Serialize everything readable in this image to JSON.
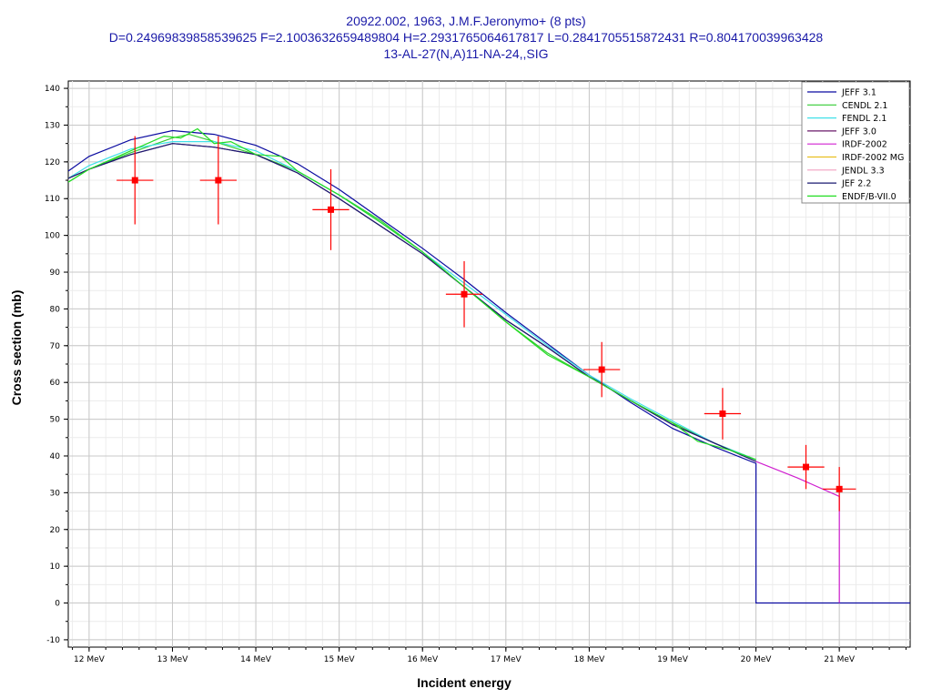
{
  "chart_data": {
    "type": "line",
    "title": "20922.002, 1963, J.M.F.Jeronymo+ (8 pts)",
    "subtitle": "D=0.24969839858539625 F=2.1003632659489804 H=2.2931765064617817 L=0.2841705515872431 R=0.804170039963428",
    "subtitle2": "13-AL-27(N,A)11-NA-24,,SIG",
    "xlabel": "Incident energy",
    "ylabel": "Cross section (mb)",
    "xlim": [
      11.75,
      21.85
    ],
    "ylim": [
      -12,
      142
    ],
    "x_ticks": [
      12,
      13,
      14,
      15,
      16,
      17,
      18,
      19,
      20,
      21
    ],
    "x_tick_labels": [
      "12 MeV",
      "13 MeV",
      "14 MeV",
      "15 MeV",
      "16 MeV",
      "17 MeV",
      "18 MeV",
      "19 MeV",
      "20 MeV",
      "21 MeV"
    ],
    "y_ticks": [
      -10,
      0,
      10,
      20,
      30,
      40,
      50,
      60,
      70,
      80,
      90,
      100,
      110,
      120,
      130,
      140
    ],
    "grid": true,
    "legend_position": "top-right",
    "series": [
      {
        "name": "JEFF 3.1",
        "color": "#0a0aa0",
        "x": [
          11.75,
          12,
          12.5,
          13,
          13.5,
          14,
          14.5,
          15,
          15.5,
          16,
          16.5,
          17,
          17.5,
          18,
          18.5,
          19,
          19.5,
          20,
          20,
          21.85
        ],
        "y": [
          117.5,
          121.5,
          126,
          128.5,
          127.5,
          124.5,
          119.5,
          112.5,
          104.5,
          96.5,
          88,
          79,
          70.5,
          62,
          54.5,
          47.5,
          42.5,
          38,
          0,
          0
        ]
      },
      {
        "name": "CENDL 2.1",
        "color": "#33cc33",
        "x": [
          11.75,
          12,
          12.5,
          13,
          13.2,
          13.5,
          14,
          14.5,
          15,
          15.5,
          16,
          16.5,
          17,
          17.5,
          18,
          18.5,
          19,
          19.5,
          20
        ],
        "y": [
          114.5,
          118,
          122.5,
          126.5,
          127.5,
          125.5,
          122,
          117.5,
          111,
          104,
          95.5,
          86,
          76.5,
          68,
          61.5,
          55,
          49,
          43.5,
          39
        ]
      },
      {
        "name": "FENDL 2.1",
        "color": "#40e0e8",
        "x": [
          11.75,
          12,
          12.5,
          13,
          13.5,
          14,
          14.5,
          15,
          15.5,
          16,
          16.5,
          17,
          17.5,
          18,
          18.5,
          19,
          19.5,
          20
        ],
        "y": [
          115.5,
          119,
          123.5,
          125.5,
          125.5,
          123,
          117.5,
          111,
          103.5,
          95.5,
          87,
          78.5,
          70,
          62,
          55.5,
          49.5,
          43.5,
          39
        ]
      },
      {
        "name": "JEFF 3.0",
        "color": "#6a1a6a",
        "x": [
          11.75,
          12,
          12.5,
          13,
          13.5,
          14,
          14.5,
          15,
          15.5,
          16,
          16.5,
          17,
          17.5,
          18,
          18.5,
          19,
          19.5,
          20
        ],
        "y": [
          115.5,
          118,
          122,
          125,
          124,
          122,
          117,
          110,
          102.5,
          95,
          86,
          77,
          69.5,
          61.5,
          55,
          48.5,
          43.5,
          38.5
        ]
      },
      {
        "name": "IRDF-2002",
        "color": "#d020d0",
        "x": [
          20,
          20.5,
          21,
          21
        ],
        "y": [
          38.5,
          34,
          29,
          0
        ]
      },
      {
        "name": "IRDF-2002 MG",
        "color": "#e8c020",
        "x": [],
        "y": []
      },
      {
        "name": "JENDL 3.3",
        "color": "#f0a0c0",
        "x": [],
        "y": []
      },
      {
        "name": "JEF 2.2",
        "color": "#1a1a70",
        "x": [
          11.75,
          12,
          12.5,
          13,
          13.5,
          14,
          14.5,
          15,
          15.5,
          16,
          16.5,
          17,
          17.5,
          18,
          18.5,
          19,
          19.5,
          20
        ],
        "y": [
          115.5,
          118,
          122,
          125,
          124,
          122,
          117,
          110,
          102.5,
          95,
          86,
          77,
          69.5,
          61.5,
          55,
          48.5,
          43.5,
          38.5
        ]
      },
      {
        "name": "ENDF/B-VII.0",
        "color": "#22dd22",
        "x": [
          11.75,
          12,
          12.5,
          12.9,
          13.1,
          13.3,
          13.5,
          13.7,
          14,
          14.3,
          14.5,
          15,
          15.5,
          16,
          16.5,
          17,
          17.5,
          18,
          18.5,
          19,
          19.3,
          19.7,
          20
        ],
        "y": [
          114.5,
          118,
          123,
          127,
          126.5,
          129,
          125,
          125.5,
          122,
          121.5,
          117.5,
          111,
          103.5,
          95.5,
          86,
          76.5,
          67.5,
          61.5,
          55,
          49,
          44,
          41.5,
          39
        ]
      }
    ],
    "experimental": {
      "name": "20922.002",
      "color": "#ff0000",
      "points": [
        {
          "x": 12.55,
          "y": 115,
          "xerr": 0.22,
          "yerr": 12
        },
        {
          "x": 13.55,
          "y": 115,
          "xerr": 0.22,
          "yerr": 12
        },
        {
          "x": 14.9,
          "y": 107,
          "xerr": 0.22,
          "yerr": 11
        },
        {
          "x": 16.5,
          "y": 84,
          "xerr": 0.22,
          "yerr": 9
        },
        {
          "x": 18.15,
          "y": 63.5,
          "xerr": 0.22,
          "yerr": 7.5
        },
        {
          "x": 19.6,
          "y": 51.5,
          "xerr": 0.22,
          "yerr": 7
        },
        {
          "x": 20.6,
          "y": 37,
          "xerr": 0.22,
          "yerr": 6
        },
        {
          "x": 21.0,
          "y": 31,
          "xerr": 0.2,
          "yerr": 6
        }
      ]
    }
  }
}
